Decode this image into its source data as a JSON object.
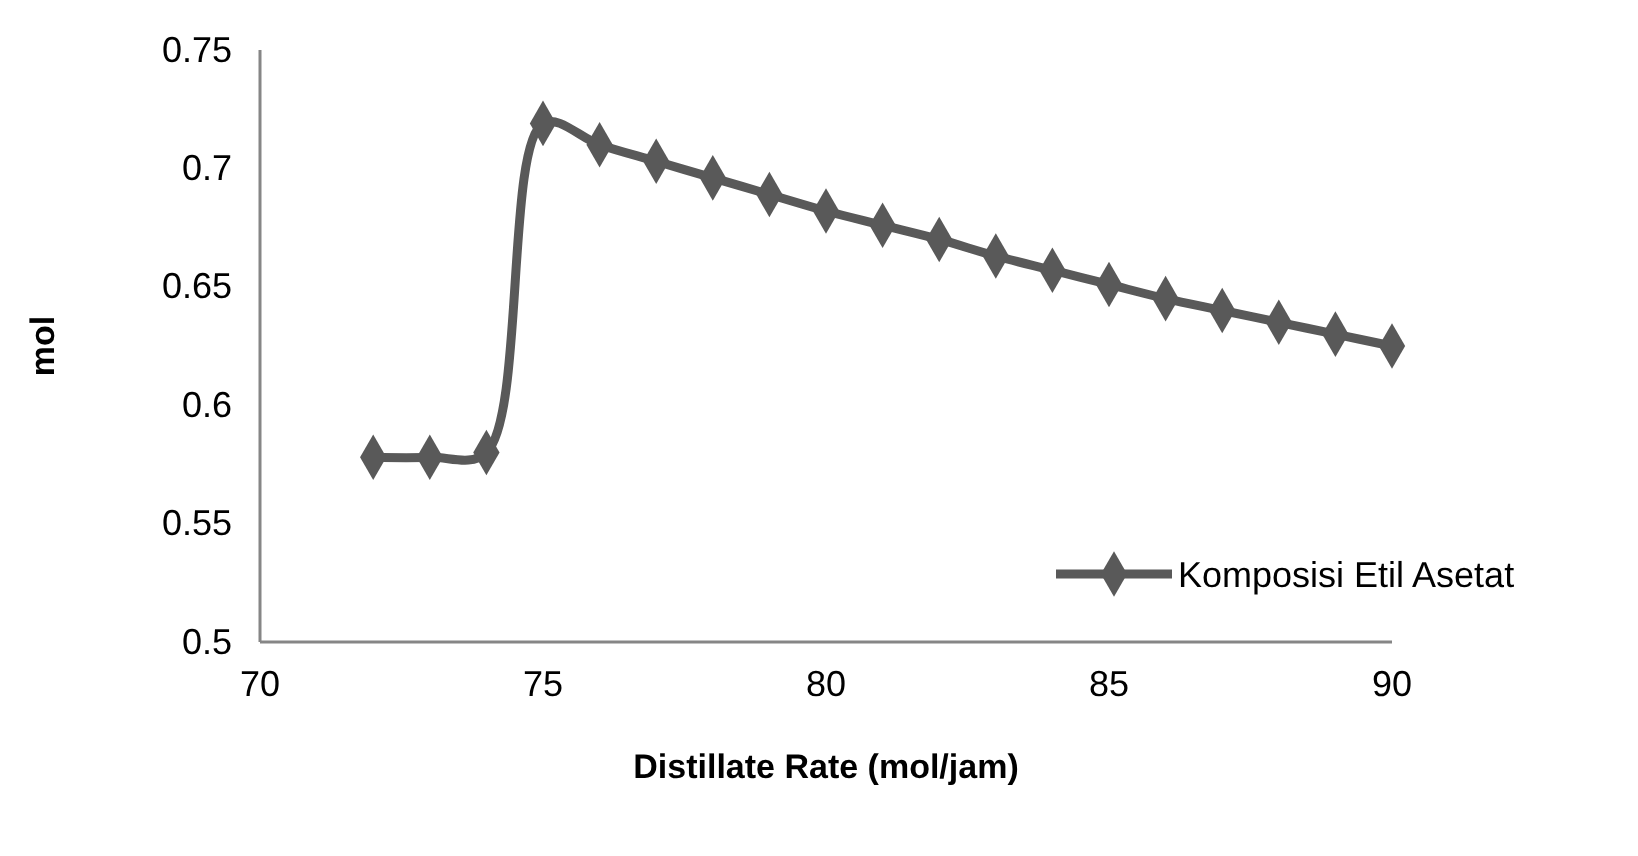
{
  "chart_data": {
    "type": "line",
    "xlabel": "Distillate Rate (mol/jam)",
    "ylabel": "mol",
    "x": [
      72,
      73,
      74,
      75,
      76,
      77,
      78,
      79,
      80,
      81,
      82,
      83,
      84,
      85,
      86,
      87,
      88,
      89,
      90
    ],
    "series": [
      {
        "name": "Komposisi Etil Asetat",
        "color": "#595959",
        "values": [
          0.578,
          0.578,
          0.58,
          0.719,
          0.71,
          0.703,
          0.696,
          0.689,
          0.682,
          0.676,
          0.67,
          0.663,
          0.657,
          0.651,
          0.645,
          0.64,
          0.635,
          0.63,
          0.625
        ]
      }
    ],
    "xlim": [
      70,
      90
    ],
    "xticks": [
      70,
      75,
      80,
      85,
      90
    ],
    "ylim": [
      0.5,
      0.75
    ],
    "yticks": [
      {
        "value": 0.5,
        "label": "0.5"
      },
      0.55,
      {
        "value": 0.6,
        "label": "0.6"
      },
      0.65,
      {
        "value": 0.7,
        "label": "0.7"
      },
      0.75
    ],
    "marker": "diamond",
    "line_style": "solid",
    "legend": "right",
    "grid": false
  }
}
